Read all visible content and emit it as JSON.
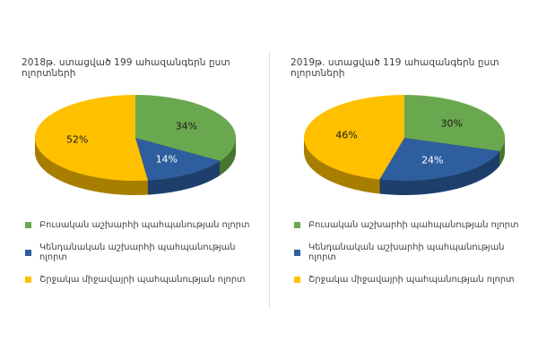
{
  "page": {
    "background": "#ffffff",
    "divider_color": "#dcdcdc"
  },
  "chart_data": [
    {
      "type": "pie",
      "effect": "3d",
      "title": "2018թ.  ստացված 199 ահազանգերն ըստ ոլորտների",
      "legend_position": "bottom-left",
      "slices": [
        {
          "label": "Բուսական աշխարհի պահպանության ոլորտ",
          "value": 34,
          "color": "#6aa84f",
          "depth_color": "#49762f",
          "label_color": "#1a1a1a"
        },
        {
          "label": "Կենդանական աշխարհի պահպանության ոլորտ",
          "value": 14,
          "color": "#2f5e9e",
          "depth_color": "#1e3f6b",
          "label_color": "#ffffff"
        },
        {
          "label": "Շրջակա միջավայրի պահպանության ոլորտ",
          "value": 52,
          "color": "#ffc000",
          "depth_color": "#a87e00",
          "label_color": "#1a1a1a"
        }
      ]
    },
    {
      "type": "pie",
      "effect": "3d",
      "title": "2019թ.  ստացված 119 ահազանգերն ըստ ոլորտների",
      "legend_position": "bottom-left",
      "slices": [
        {
          "label": "Բուսական աշխարհի պահպանության ոլորտ",
          "value": 30,
          "color": "#6aa84f",
          "depth_color": "#49762f",
          "label_color": "#1a1a1a"
        },
        {
          "label": "Կենդանական աշխարհի պահպանության ոլորտ",
          "value": 24,
          "color": "#2f5e9e",
          "depth_color": "#1e3f6b",
          "label_color": "#ffffff"
        },
        {
          "label": "Շրջակա միջավայրի պահպանության ոլորտ",
          "value": 46,
          "color": "#ffc000",
          "depth_color": "#a87e00",
          "label_color": "#1a1a1a"
        }
      ]
    }
  ]
}
